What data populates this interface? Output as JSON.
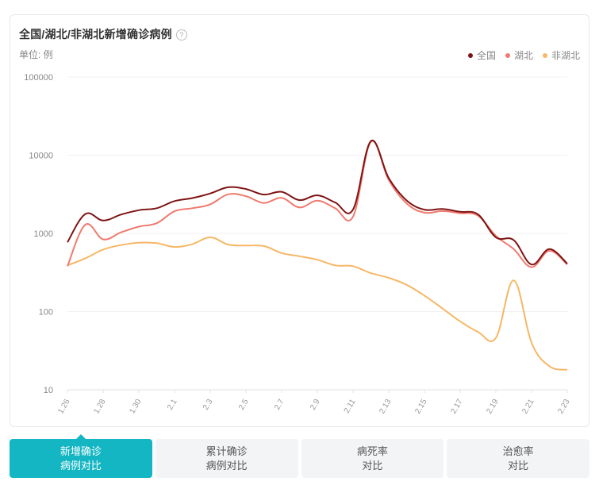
{
  "title": "全国/湖北/非湖北新增确诊病例",
  "help_icon": "?",
  "unit": "单位: 例",
  "legend": [
    {
      "label": "全国",
      "color": "#7f1414"
    },
    {
      "label": "湖北",
      "color": "#f07a6f"
    },
    {
      "label": "非湖北",
      "color": "#f6b766"
    }
  ],
  "tabs": [
    {
      "label": "新增确诊\n病例对比",
      "active": true
    },
    {
      "label": "累计确诊\n病例对比",
      "active": false
    },
    {
      "label": "病死率\n对比",
      "active": false
    },
    {
      "label": "治愈率\n对比",
      "active": false
    }
  ],
  "chart_data": {
    "type": "line",
    "title": "全国/湖北/非湖北新增确诊病例",
    "ylabel": "单位: 例",
    "yscale": "log",
    "ylim": [
      10,
      100000
    ],
    "yticks": [
      10,
      100,
      1000,
      10000,
      100000
    ],
    "ytick_labels": [
      "10",
      "100",
      "1000",
      "10000",
      "100000"
    ],
    "x": [
      "1.26",
      "1.27",
      "1.28",
      "1.29",
      "1.30",
      "1.31",
      "2.1",
      "2.2",
      "2.3",
      "2.4",
      "2.5",
      "2.6",
      "2.7",
      "2.8",
      "2.9",
      "2.10",
      "2.11",
      "2.12",
      "2.13",
      "2.14",
      "2.15",
      "2.16",
      "2.17",
      "2.18",
      "2.19",
      "2.20",
      "2.21",
      "2.22",
      "2.23"
    ],
    "xtick_labels": [
      "1.26",
      "1.28",
      "1.30",
      "2.1",
      "2.3",
      "2.5",
      "2.7",
      "2.9",
      "2.11",
      "2.13",
      "2.15",
      "2.17",
      "2.19",
      "2.21",
      "2.23"
    ],
    "grid": true,
    "legend_position": "top-right",
    "series": [
      {
        "name": "全国",
        "color": "#7f1414",
        "values": [
          770,
          1770,
          1460,
          1740,
          1980,
          2100,
          2590,
          2830,
          3240,
          3890,
          3690,
          3140,
          3400,
          2660,
          3070,
          2480,
          2020,
          15150,
          5090,
          2640,
          2010,
          2050,
          1890,
          1750,
          890,
          820,
          400,
          630,
          410
        ]
      },
      {
        "name": "湖北",
        "color": "#f07a6f",
        "values": [
          380,
          1290,
          840,
          1030,
          1220,
          1350,
          1920,
          2100,
          2350,
          3160,
          2990,
          2450,
          2840,
          2150,
          2620,
          2100,
          1640,
          14840,
          4820,
          2420,
          1840,
          1930,
          1810,
          1690,
          930,
          630,
          370,
          600,
          400
        ]
      },
      {
        "name": "非湖北",
        "color": "#f6b766",
        "values": [
          390,
          480,
          620,
          710,
          760,
          750,
          670,
          730,
          890,
          720,
          700,
          690,
          560,
          510,
          460,
          390,
          380,
          310,
          270,
          220,
          160,
          110,
          75,
          55,
          46,
          250,
          40,
          20,
          18
        ]
      }
    ]
  }
}
